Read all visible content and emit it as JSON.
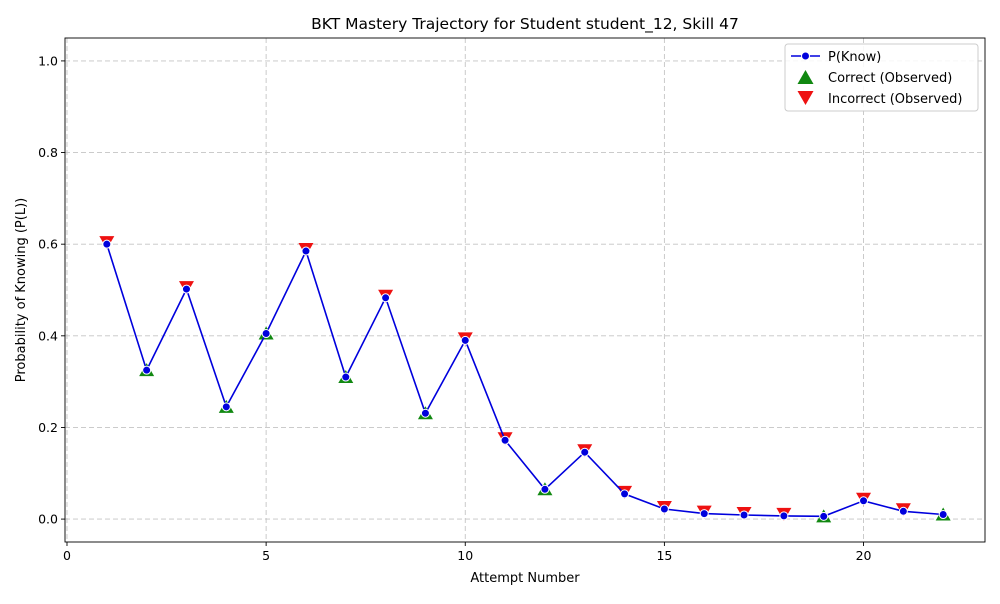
{
  "chart_data": {
    "type": "line",
    "title": "BKT Mastery Trajectory for Student student_12, Skill 47",
    "xlabel": "Attempt Number",
    "ylabel": "Probability of Knowing (P(L))",
    "xlim": [
      -0.05,
      23.05
    ],
    "ylim": [
      -0.05,
      1.05
    ],
    "xticks": [
      0,
      5,
      10,
      15,
      20
    ],
    "yticks": [
      0.0,
      0.2,
      0.4,
      0.6,
      0.8,
      1.0
    ],
    "grid": true,
    "legend_position": "top-right",
    "colors": {
      "line": "#0000dd",
      "correct": "#118811",
      "incorrect": "#ee1111",
      "grid": "#c4c4c4"
    },
    "series": [
      {
        "name": "P(Know)",
        "x": [
          1,
          2,
          3,
          4,
          5,
          6,
          7,
          8,
          9,
          10,
          11,
          12,
          13,
          14,
          15,
          16,
          17,
          18,
          19,
          20,
          21,
          22
        ],
        "y": [
          0.6,
          0.325,
          0.502,
          0.245,
          0.405,
          0.585,
          0.31,
          0.483,
          0.231,
          0.39,
          0.172,
          0.065,
          0.146,
          0.055,
          0.022,
          0.012,
          0.009,
          0.007,
          0.006,
          0.04,
          0.017,
          0.01
        ]
      }
    ],
    "observations": [
      {
        "name": "Correct (Observed)",
        "x": [
          2,
          4,
          5,
          7,
          9,
          12,
          19,
          22
        ],
        "y": [
          0.325,
          0.245,
          0.405,
          0.31,
          0.231,
          0.065,
          0.006,
          0.01
        ]
      },
      {
        "name": "Incorrect (Observed)",
        "x": [
          1,
          3,
          6,
          8,
          10,
          11,
          13,
          14,
          15,
          16,
          17,
          18,
          20,
          21
        ],
        "y": [
          0.6,
          0.502,
          0.585,
          0.483,
          0.39,
          0.172,
          0.146,
          0.055,
          0.022,
          0.012,
          0.009,
          0.007,
          0.04,
          0.017
        ]
      }
    ],
    "legend": [
      "P(Know)",
      "Correct (Observed)",
      "Incorrect (Observed)"
    ]
  }
}
